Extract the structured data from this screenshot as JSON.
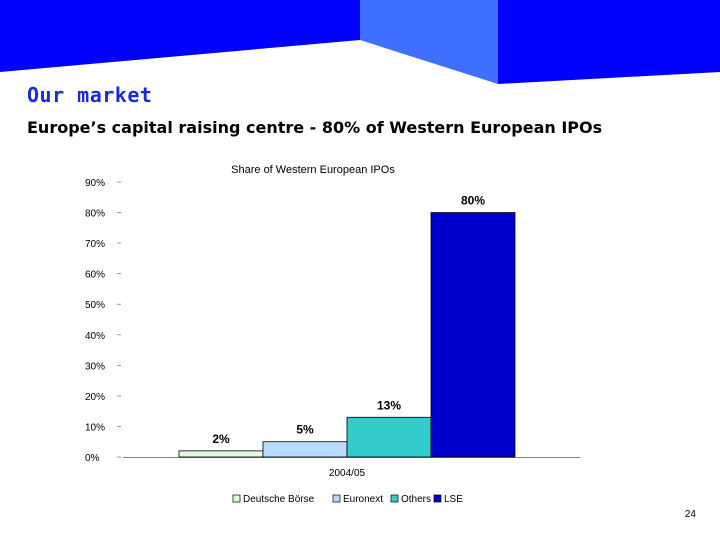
{
  "slide": {
    "title": "Our market",
    "subtitle": "Europe’s capital raising centre - 80% of Western European IPOs",
    "page_number": "24"
  },
  "colors": {
    "banner_dark": "#0000ff",
    "banner_light": "#3f6fff",
    "title": "#1a2ad8"
  },
  "chart_data": {
    "type": "bar",
    "title": "Share of Western European IPOs",
    "categories": [
      "2004/05"
    ],
    "xlabel": "",
    "ylabel": "",
    "ylim": [
      0,
      90
    ],
    "yticks": [
      "0%",
      "10%",
      "20%",
      "30%",
      "40%",
      "50%",
      "60%",
      "70%",
      "80%",
      "90%"
    ],
    "grid": false,
    "legend_position": "bottom",
    "series": [
      {
        "name": "Deutsche Börse",
        "values": [
          2
        ],
        "label": "2%",
        "color": "#e2fbe0"
      },
      {
        "name": "Euronext",
        "values": [
          5
        ],
        "label": "5%",
        "color": "#b7dcff"
      },
      {
        "name": "Others",
        "values": [
          13
        ],
        "label": "13%",
        "color": "#33cccc"
      },
      {
        "name": "LSE",
        "values": [
          80
        ],
        "label": "80%",
        "color": "#0000cc"
      }
    ]
  }
}
